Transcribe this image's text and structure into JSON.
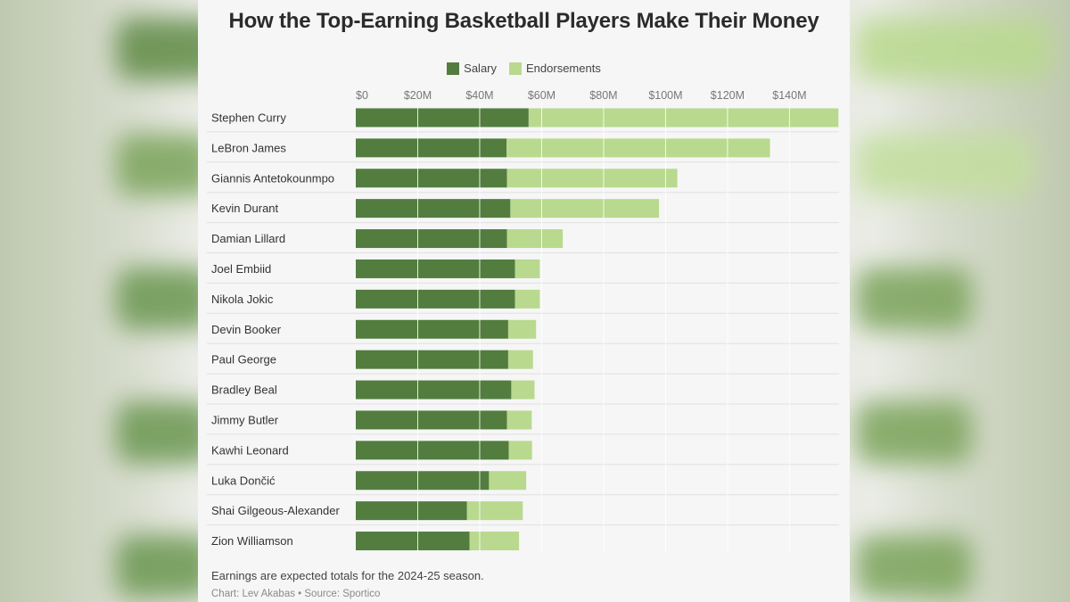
{
  "chart_data": {
    "type": "bar",
    "orientation": "horizontal",
    "stacked": true,
    "title": "How the Top-Earning Basketball Players Make Their Money",
    "xlim": [
      0,
      156
    ],
    "x_ticks": [
      {
        "value": 0,
        "label": "$0"
      },
      {
        "value": 20,
        "label": "$20M"
      },
      {
        "value": 40,
        "label": "$40M"
      },
      {
        "value": 60,
        "label": "$60M"
      },
      {
        "value": 80,
        "label": "$80M"
      },
      {
        "value": 100,
        "label": "$100M"
      },
      {
        "value": 120,
        "label": "$120M"
      },
      {
        "value": 140,
        "label": "$140M"
      }
    ],
    "grid": true,
    "legend_position": "top-center",
    "categories": [
      "Stephen Curry",
      "LeBron James",
      "Giannis Antetokounmpo",
      "Kevin Durant",
      "Damian Lillard",
      "Joel Embiid",
      "Nikola Jokic",
      "Devin Booker",
      "Paul George",
      "Bradley Beal",
      "Jimmy Butler",
      "Kawhi Leonard",
      "Luka Dončić",
      "Shai Gilgeous-Alexander",
      "Zion Williamson"
    ],
    "series": [
      {
        "name": "Salary",
        "color": "#527d3f",
        "values": [
          55.8,
          48.7,
          48.8,
          49.9,
          48.8,
          51.4,
          51.4,
          49.2,
          49.2,
          50.2,
          48.8,
          49.4,
          43.0,
          35.9,
          36.7
        ]
      },
      {
        "name": "Endorsements",
        "color": "#b9d98e",
        "values": [
          100.0,
          85.0,
          55.0,
          48.0,
          18.0,
          8.0,
          8.0,
          9.0,
          8.0,
          7.5,
          8.0,
          7.5,
          12.0,
          18.0,
          16.0
        ]
      }
    ],
    "footnote": "Earnings are expected totals for the 2024-25 season.",
    "credit": "Chart: Lev Akabas • Source: Sportico"
  }
}
